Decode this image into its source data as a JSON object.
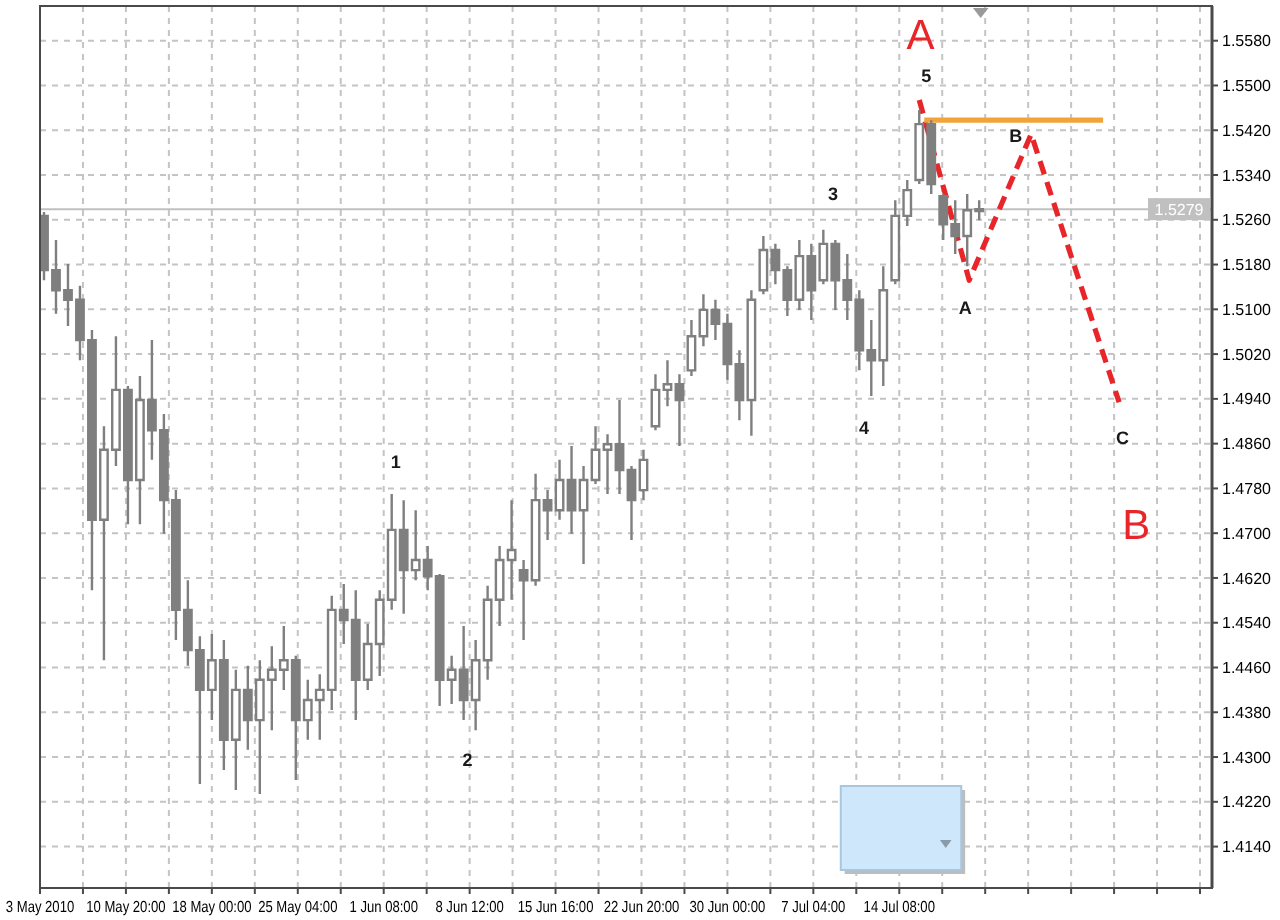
{
  "chart_data": {
    "type": "candlestick",
    "color": "#7f7f7f",
    "x": [
      "2010-05-04",
      "2010-05-05",
      "2010-05-06",
      "2010-05-07",
      "2010-05-08",
      "2010-05-09",
      "2010-05-10",
      "2010-05-11",
      "2010-05-12",
      "2010-05-13",
      "2010-05-14",
      "2010-05-15",
      "2010-05-16",
      "2010-05-17",
      "2010-05-18",
      "2010-05-19",
      "2010-05-20",
      "2010-05-21",
      "2010-05-22",
      "2010-05-23",
      "2010-05-24",
      "2010-05-25",
      "2010-05-26",
      "2010-05-27",
      "2010-05-28",
      "2010-05-29",
      "2010-05-30",
      "2010-05-31",
      "2010-06-01",
      "2010-06-02",
      "2010-06-03",
      "2010-06-04",
      "2010-06-05",
      "2010-06-06",
      "2010-06-07",
      "2010-06-08",
      "2010-06-09",
      "2010-06-10",
      "2010-06-11",
      "2010-06-12",
      "2010-06-13",
      "2010-06-14",
      "2010-06-15",
      "2010-06-16",
      "2010-06-17",
      "2010-06-18",
      "2010-06-19",
      "2010-06-20",
      "2010-06-21",
      "2010-06-22",
      "2010-06-23",
      "2010-06-24",
      "2010-06-25",
      "2010-06-26",
      "2010-06-27",
      "2010-06-28",
      "2010-06-29",
      "2010-06-30",
      "2010-07-01",
      "2010-07-02",
      "2010-07-03",
      "2010-07-04",
      "2010-07-05",
      "2010-07-06",
      "2010-07-07",
      "2010-07-08",
      "2010-07-09",
      "2010-07-10",
      "2010-07-11",
      "2010-07-12",
      "2010-07-13",
      "2010-07-14",
      "2010-07-15",
      "2010-07-16",
      "2010-07-17",
      "2010-07-18",
      "2010-07-19",
      "2010-07-20",
      "2010-07-21"
    ],
    "ohlc": [
      [
        1.5267,
        1.5274,
        1.5152,
        1.517
      ],
      [
        1.517,
        1.5224,
        1.5092,
        1.5134
      ],
      [
        1.5134,
        1.5181,
        1.507,
        1.5117
      ],
      [
        1.5117,
        1.5142,
        1.5009,
        1.5045
      ],
      [
        1.5045,
        1.5063,
        1.4598,
        1.4724
      ],
      [
        1.4724,
        1.4891,
        1.4473,
        1.4849
      ],
      [
        1.4849,
        1.5052,
        1.482,
        1.4956
      ],
      [
        1.4956,
        1.4963,
        1.4716,
        1.4795
      ],
      [
        1.4795,
        1.4981,
        1.4716,
        1.4938
      ],
      [
        1.4938,
        1.5045,
        1.4831,
        1.4884
      ],
      [
        1.4884,
        1.4913,
        1.4699,
        1.4759
      ],
      [
        1.4759,
        1.4777,
        1.4509,
        1.4563
      ],
      [
        1.4563,
        1.4616,
        1.4463,
        1.4491
      ],
      [
        1.4491,
        1.4516,
        1.4252,
        1.442
      ],
      [
        1.442,
        1.452,
        1.4366,
        1.4473
      ],
      [
        1.4473,
        1.4509,
        1.4277,
        1.4331
      ],
      [
        1.4331,
        1.4456,
        1.4241,
        1.442
      ],
      [
        1.442,
        1.4463,
        1.4313,
        1.4366
      ],
      [
        1.4366,
        1.4473,
        1.4234,
        1.4438
      ],
      [
        1.4438,
        1.4498,
        1.4348,
        1.4456
      ],
      [
        1.4456,
        1.4534,
        1.442,
        1.4473
      ],
      [
        1.4473,
        1.4481,
        1.4259,
        1.4366
      ],
      [
        1.4366,
        1.4438,
        1.4331,
        1.4402
      ],
      [
        1.4402,
        1.4448,
        1.4331,
        1.442
      ],
      [
        1.442,
        1.4588,
        1.4384,
        1.4563
      ],
      [
        1.4563,
        1.4609,
        1.4502,
        1.4545
      ],
      [
        1.4545,
        1.4598,
        1.4366,
        1.4438
      ],
      [
        1.4438,
        1.4538,
        1.442,
        1.4502
      ],
      [
        1.4502,
        1.4598,
        1.4445,
        1.4581
      ],
      [
        1.4581,
        1.477,
        1.4563,
        1.4706
      ],
      [
        1.4706,
        1.4759,
        1.4556,
        1.4634
      ],
      [
        1.4634,
        1.4741,
        1.4616,
        1.4652
      ],
      [
        1.4652,
        1.4677,
        1.4598,
        1.4623
      ],
      [
        1.4623,
        1.4627,
        1.4391,
        1.4438
      ],
      [
        1.4438,
        1.4481,
        1.4395,
        1.4456
      ],
      [
        1.4456,
        1.4534,
        1.4366,
        1.4402
      ],
      [
        1.4402,
        1.4509,
        1.4348,
        1.4473
      ],
      [
        1.4473,
        1.4606,
        1.4438,
        1.4581
      ],
      [
        1.4581,
        1.4677,
        1.4534,
        1.4652
      ],
      [
        1.4652,
        1.4759,
        1.4581,
        1.467
      ],
      [
        1.4634,
        1.4652,
        1.4509,
        1.4616
      ],
      [
        1.4616,
        1.4806,
        1.4606,
        1.4759
      ],
      [
        1.4759,
        1.4777,
        1.4688,
        1.4741
      ],
      [
        1.4741,
        1.4831,
        1.4724,
        1.4795
      ],
      [
        1.4795,
        1.4856,
        1.4699,
        1.4741
      ],
      [
        1.4741,
        1.482,
        1.4645,
        1.4795
      ],
      [
        1.4795,
        1.4891,
        1.4788,
        1.4849
      ],
      [
        1.4849,
        1.4877,
        1.477,
        1.4859
      ],
      [
        1.4859,
        1.4938,
        1.477,
        1.4813
      ],
      [
        1.4813,
        1.482,
        1.4688,
        1.4759
      ],
      [
        1.4777,
        1.4849,
        1.4759,
        1.4831
      ],
      [
        1.4891,
        1.4984,
        1.4884,
        1.4956
      ],
      [
        1.4956,
        1.5009,
        1.4927,
        1.4966
      ],
      [
        1.4966,
        1.4984,
        1.4856,
        1.4938
      ],
      [
        1.4991,
        1.5081,
        1.4981,
        1.5052
      ],
      [
        1.5052,
        1.5127,
        1.5034,
        1.5099
      ],
      [
        1.5099,
        1.5117,
        1.5045,
        1.5074
      ],
      [
        1.5074,
        1.5092,
        1.4974,
        1.5002
      ],
      [
        1.5002,
        1.5027,
        1.4902,
        1.4938
      ],
      [
        1.4938,
        1.5134,
        1.4874,
        1.5117
      ],
      [
        1.5134,
        1.5231,
        1.5127,
        1.5206
      ],
      [
        1.5206,
        1.5217,
        1.5145,
        1.517
      ],
      [
        1.517,
        1.5177,
        1.5088,
        1.5117
      ],
      [
        1.5117,
        1.5224,
        1.5099,
        1.5195
      ],
      [
        1.5195,
        1.5217,
        1.5081,
        1.5134
      ],
      [
        1.5152,
        1.5242,
        1.5145,
        1.5217
      ],
      [
        1.5217,
        1.5224,
        1.5099,
        1.5152
      ],
      [
        1.5152,
        1.5199,
        1.5081,
        1.5117
      ],
      [
        1.5117,
        1.5134,
        1.4991,
        1.5027
      ],
      [
        1.5027,
        1.5081,
        1.4945,
        1.5009
      ],
      [
        1.5009,
        1.5177,
        1.4963,
        1.5134
      ],
      [
        1.5152,
        1.5295,
        1.5145,
        1.5267
      ],
      [
        1.5267,
        1.5331,
        1.5249,
        1.5313
      ],
      [
        1.5331,
        1.5456,
        1.5324,
        1.5431
      ],
      [
        1.5431,
        1.5438,
        1.5306,
        1.5324
      ],
      [
        1.5302,
        1.5306,
        1.5224,
        1.5252
      ],
      [
        1.5252,
        1.5295,
        1.5199,
        1.5231
      ],
      [
        1.5231,
        1.5306,
        1.5177,
        1.5277
      ],
      [
        1.5277,
        1.5295,
        1.5259,
        1.5279
      ]
    ],
    "series": [
      {
        "type": "line",
        "color": "#e8262a",
        "line_style": "dashed",
        "x": [
          "2010-07-16",
          "2010-07-20T04:00",
          "2010-07-25T08:00",
          "2010-08-01T16:00"
        ],
        "values": [
          1.5474,
          1.5152,
          1.5413,
          1.4934
        ]
      },
      {
        "type": "line",
        "color": "#f2a33a",
        "line_style": "solid",
        "x": [
          "2010-07-16T10:00",
          "2010-07-31T08:00"
        ],
        "values": [
          1.5438,
          1.5438
        ]
      }
    ],
    "xlim": [
      "2010-05-03T16:00",
      "2010-08-09T10:00"
    ],
    "xticks": [
      {
        "value": "2010-05-03T16:00",
        "label": "3 May 2010"
      },
      {
        "value": "2010-05-07T06:00",
        "label": null
      },
      {
        "value": "2010-05-10T20:00",
        "label": "10 May 20:00"
      },
      {
        "value": "2010-05-14T10:00",
        "label": null
      },
      {
        "value": "2010-05-18T00:00",
        "label": "18 May 00:00"
      },
      {
        "value": "2010-05-21T14:00",
        "label": null
      },
      {
        "value": "2010-05-25T04:00",
        "label": "25 May 04:00"
      },
      {
        "value": "2010-05-28T18:00",
        "label": null
      },
      {
        "value": "2010-06-01T08:00",
        "label": "1 Jun 08:00"
      },
      {
        "value": "2010-06-04T22:00",
        "label": null
      },
      {
        "value": "2010-06-08T12:00",
        "label": "8 Jun 12:00"
      },
      {
        "value": "2010-06-12T02:00",
        "label": null
      },
      {
        "value": "2010-06-15T16:00",
        "label": "15 Jun 16:00"
      },
      {
        "value": "2010-06-19T06:00",
        "label": null
      },
      {
        "value": "2010-06-22T20:00",
        "label": "22 Jun 20:00"
      },
      {
        "value": "2010-06-26T10:00",
        "label": null
      },
      {
        "value": "2010-06-30T00:00",
        "label": "30 Jun 00:00"
      },
      {
        "value": "2010-07-03T14:00",
        "label": null
      },
      {
        "value": "2010-07-07T04:00",
        "label": "7 Jul 04:00"
      },
      {
        "value": "2010-07-10T18:00",
        "label": null
      },
      {
        "value": "2010-07-14T08:00",
        "label": "14 Jul 08:00"
      },
      {
        "value": "2010-07-17T22:00",
        "label": null
      },
      {
        "value": "2010-07-21T12:00",
        "label": null
      },
      {
        "value": "2010-07-25T02:00",
        "label": null
      },
      {
        "value": "2010-07-28T16:00",
        "label": null
      },
      {
        "value": "2010-08-01T06:00",
        "label": null
      },
      {
        "value": "2010-08-04T20:00",
        "label": null
      },
      {
        "value": "2010-08-08T10:00",
        "label": null
      }
    ],
    "ylim": [
      1.4066,
      1.5642
    ],
    "yticks": [
      {
        "value": 1.558,
        "label": "1.5580"
      },
      {
        "value": 1.55,
        "label": "1.5500"
      },
      {
        "value": 1.542,
        "label": "1.5420"
      },
      {
        "value": 1.534,
        "label": "1.5340"
      },
      {
        "value": 1.526,
        "label": "1.5260"
      },
      {
        "value": 1.518,
        "label": "1.5180"
      },
      {
        "value": 1.51,
        "label": "1.5100"
      },
      {
        "value": 1.502,
        "label": "1.5020"
      },
      {
        "value": 1.494,
        "label": "1.4940"
      },
      {
        "value": 1.486,
        "label": "1.4860"
      },
      {
        "value": 1.478,
        "label": "1.4780"
      },
      {
        "value": 1.47,
        "label": "1.4700"
      },
      {
        "value": 1.462,
        "label": "1.4620"
      },
      {
        "value": 1.454,
        "label": "1.4540"
      },
      {
        "value": 1.446,
        "label": "1.4460"
      },
      {
        "value": 1.438,
        "label": "1.4380"
      },
      {
        "value": 1.43,
        "label": "1.4300"
      },
      {
        "value": 1.422,
        "label": "1.4220"
      },
      {
        "value": 1.414,
        "label": "1.4140"
      }
    ],
    "grid": true,
    "ref_lines": [
      {
        "axis": "y",
        "value": 1.5279,
        "label": "1.5279",
        "color": "#c0c0c0"
      }
    ],
    "annotations": [
      "1",
      "2",
      "3",
      "4",
      "5",
      "A",
      "B",
      "C",
      "A",
      "B"
    ]
  }
}
